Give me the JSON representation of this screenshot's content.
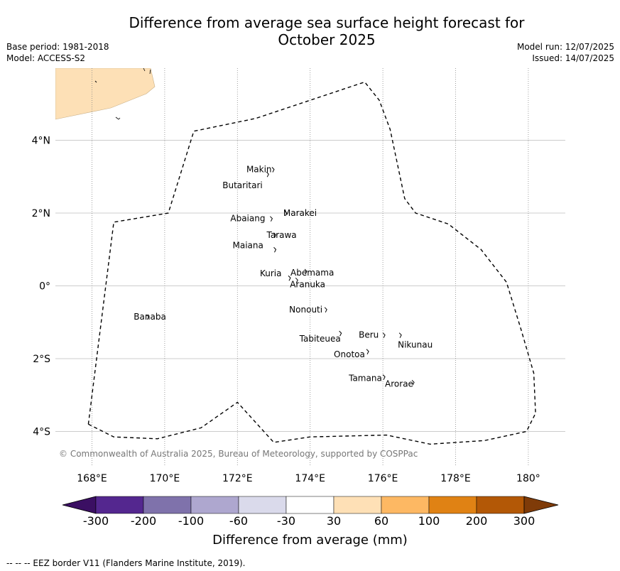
{
  "title_line1": "Difference from average sea surface height forecast for",
  "title_line2": "October 2025",
  "meta_left": {
    "base_period": "Base period: 1981-2018",
    "model": "Model: ACCESS-S2"
  },
  "meta_right": {
    "model_run": "Model run: 12/07/2025",
    "issued": "Issued: 14/07/2025"
  },
  "copyright": "© Commonwealth of Australia 2025, Bureau of Meteorology, supported by COSPPac",
  "footer": "--  --  -- EEZ border V11 (Flanders Marine Institute, 2019).",
  "map": {
    "lon_range": [
      167,
      181
    ],
    "lat_range": [
      -5,
      6
    ],
    "lon_ticks": [
      {
        "value": 168,
        "label": "168°E"
      },
      {
        "value": 170,
        "label": "170°E"
      },
      {
        "value": 172,
        "label": "172°E"
      },
      {
        "value": 174,
        "label": "174°E"
      },
      {
        "value": 176,
        "label": "176°E"
      },
      {
        "value": 178,
        "label": "178°E"
      },
      {
        "value": 180,
        "label": "180°"
      }
    ],
    "lat_ticks": [
      {
        "value": 4,
        "label": "4°N"
      },
      {
        "value": 2,
        "label": "2°N"
      },
      {
        "value": 0,
        "label": "0°"
      },
      {
        "value": -2,
        "label": "2°S"
      },
      {
        "value": -4,
        "label": "4°S"
      }
    ],
    "islands": [
      {
        "name": "Makin",
        "lon": 172.95,
        "lat": 3.2
      },
      {
        "name": "Butaritari",
        "lon": 172.8,
        "lat": 3.07
      },
      {
        "name": "Marakei",
        "lon": 173.3,
        "lat": 2.0
      },
      {
        "name": "Abaiang",
        "lon": 172.9,
        "lat": 1.85
      },
      {
        "name": "Tarawa",
        "lon": 173.0,
        "lat": 1.4
      },
      {
        "name": "Maiana",
        "lon": 173.0,
        "lat": 1.0
      },
      {
        "name": "Abemama",
        "lon": 173.85,
        "lat": 0.4
      },
      {
        "name": "Kuria",
        "lon": 173.4,
        "lat": 0.22
      },
      {
        "name": "Aranuka",
        "lon": 173.6,
        "lat": 0.16
      },
      {
        "name": "Nonouti",
        "lon": 174.4,
        "lat": -0.65
      },
      {
        "name": "Banaba",
        "lon": 169.5,
        "lat": -0.85
      },
      {
        "name": "Tabiteuea",
        "lon": 174.8,
        "lat": -1.3
      },
      {
        "name": "Beru",
        "lon": 176.0,
        "lat": -1.35
      },
      {
        "name": "Nikunau",
        "lon": 176.45,
        "lat": -1.35
      },
      {
        "name": "Onotoa",
        "lon": 175.55,
        "lat": -1.8
      },
      {
        "name": "Tamana",
        "lon": 176.0,
        "lat": -2.5
      },
      {
        "name": "Arorae",
        "lon": 176.8,
        "lat": -2.65
      }
    ],
    "eez_border": [
      [
        167.9,
        -3.8
      ],
      [
        168.6,
        1.75
      ],
      [
        170.1,
        2.0
      ],
      [
        170.8,
        4.25
      ],
      [
        172.5,
        4.6
      ],
      [
        175.5,
        5.6
      ],
      [
        175.9,
        5.1
      ],
      [
        176.2,
        4.3
      ],
      [
        176.6,
        2.4
      ],
      [
        176.9,
        2.0
      ],
      [
        177.8,
        1.7
      ],
      [
        178.7,
        1.0
      ],
      [
        179.4,
        0.1
      ],
      [
        179.8,
        -1.2
      ],
      [
        180.15,
        -2.4
      ],
      [
        180.2,
        -3.5
      ],
      [
        179.95,
        -4.0
      ],
      [
        178.8,
        -4.25
      ],
      [
        177.3,
        -4.35
      ],
      [
        176.1,
        -4.1
      ],
      [
        174.0,
        -4.15
      ],
      [
        173.0,
        -4.3
      ],
      [
        172.0,
        -3.2
      ],
      [
        171.0,
        -3.9
      ],
      [
        169.8,
        -4.2
      ],
      [
        168.6,
        -4.15
      ],
      [
        167.9,
        -3.8
      ]
    ]
  },
  "colorbar": {
    "title": "Difference from average (mm)",
    "labels": [
      "-300",
      "-200",
      "-100",
      "-60",
      "-30",
      "30",
      "60",
      "100",
      "200",
      "300"
    ],
    "colors": [
      "#3b0f63",
      "#54278f",
      "#7f72ab",
      "#aea7cf",
      "#dadaeb",
      "#ffffff",
      "#fee0b6",
      "#fdb863",
      "#e08214",
      "#b35806",
      "#7f3b08"
    ],
    "land_color": "#fde0b6"
  }
}
